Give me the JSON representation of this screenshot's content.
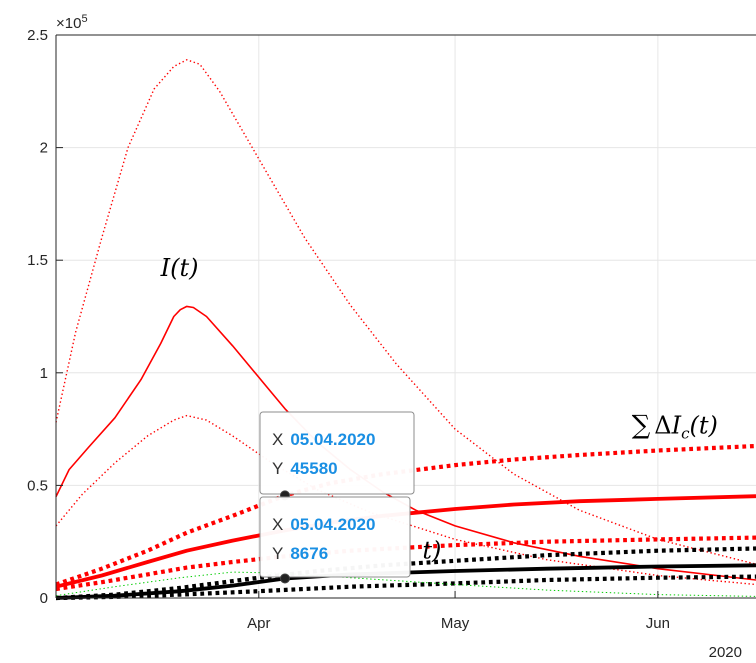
{
  "chart_data": {
    "type": "line",
    "title": "",
    "xlabel": "",
    "ylabel": "",
    "x_year_label": "2020",
    "y_exponent": "×10",
    "y_exponent_power": "5",
    "ylim": [
      0,
      250000
    ],
    "xlim": [
      "2020-03-01",
      "2020-06-16"
    ],
    "x_ticks": [
      {
        "date": "2020-04-01",
        "label": "Apr"
      },
      {
        "date": "2020-05-01",
        "label": "May"
      },
      {
        "date": "2020-06-01",
        "label": "Jun"
      }
    ],
    "y_ticks": [
      {
        "value": 0,
        "label": "0"
      },
      {
        "value": 50000,
        "label": "0.5"
      },
      {
        "value": 100000,
        "label": "1"
      },
      {
        "value": 150000,
        "label": "1.5"
      },
      {
        "value": 200000,
        "label": "2"
      },
      {
        "value": 250000,
        "label": "2.5"
      }
    ],
    "grid": true,
    "series": [
      {
        "color": "#ff0000",
        "style": "solid",
        "width": 1.6,
        "points": [
          [
            "2020-03-01",
            45000
          ],
          [
            "2020-03-03",
            57000
          ],
          [
            "2020-03-06",
            67000
          ],
          [
            "2020-03-10",
            80000
          ],
          [
            "2020-03-14",
            97000
          ],
          [
            "2020-03-17",
            113000
          ],
          [
            "2020-03-19",
            125000
          ],
          [
            "2020-03-20",
            128000
          ],
          [
            "2020-03-21",
            129500
          ],
          [
            "2020-03-22",
            129000
          ],
          [
            "2020-03-24",
            125000
          ],
          [
            "2020-03-28",
            112000
          ],
          [
            "2020-04-01",
            98000
          ],
          [
            "2020-04-05",
            84000
          ],
          [
            "2020-04-10",
            69000
          ],
          [
            "2020-04-15",
            57000
          ],
          [
            "2020-04-20",
            47000
          ],
          [
            "2020-04-25",
            39000
          ],
          [
            "2020-05-01",
            32000
          ],
          [
            "2020-05-10",
            24500
          ],
          [
            "2020-05-20",
            18500
          ],
          [
            "2020-06-01",
            13000
          ],
          [
            "2020-06-16",
            8000
          ]
        ]
      },
      {
        "color": "#ff0000",
        "style": "dotted",
        "width": 1.4,
        "points": [
          [
            "2020-03-01",
            78000
          ],
          [
            "2020-03-04",
            118000
          ],
          [
            "2020-03-08",
            160000
          ],
          [
            "2020-03-12",
            200000
          ],
          [
            "2020-03-16",
            226000
          ],
          [
            "2020-03-19",
            236000
          ],
          [
            "2020-03-21",
            239000
          ],
          [
            "2020-03-23",
            237000
          ],
          [
            "2020-03-26",
            225000
          ],
          [
            "2020-04-01",
            195000
          ],
          [
            "2020-04-08",
            160000
          ],
          [
            "2020-04-15",
            130000
          ],
          [
            "2020-04-22",
            104000
          ],
          [
            "2020-05-01",
            75000
          ],
          [
            "2020-05-10",
            55000
          ],
          [
            "2020-05-20",
            39000
          ],
          [
            "2020-06-01",
            26000
          ],
          [
            "2020-06-16",
            15000
          ]
        ]
      },
      {
        "color": "#ff0000",
        "style": "dotted",
        "width": 1.4,
        "points": [
          [
            "2020-03-01",
            32000
          ],
          [
            "2020-03-05",
            46000
          ],
          [
            "2020-03-10",
            60000
          ],
          [
            "2020-03-15",
            72000
          ],
          [
            "2020-03-19",
            79000
          ],
          [
            "2020-03-21",
            81000
          ],
          [
            "2020-03-24",
            79000
          ],
          [
            "2020-03-28",
            72000
          ],
          [
            "2020-04-03",
            60000
          ],
          [
            "2020-04-10",
            48000
          ],
          [
            "2020-04-18",
            38000
          ],
          [
            "2020-05-01",
            26000
          ],
          [
            "2020-05-15",
            17000
          ],
          [
            "2020-06-01",
            10000
          ],
          [
            "2020-06-16",
            6000
          ]
        ]
      },
      {
        "color": "#ff0000",
        "style": "solid",
        "width": 3.8,
        "points": [
          [
            "2020-03-01",
            5000
          ],
          [
            "2020-03-08",
            10000
          ],
          [
            "2020-03-15",
            16000
          ],
          [
            "2020-03-21",
            21000
          ],
          [
            "2020-03-28",
            25500
          ],
          [
            "2020-04-05",
            30000
          ],
          [
            "2020-04-12",
            33500
          ],
          [
            "2020-04-20",
            36500
          ],
          [
            "2020-05-01",
            39500
          ],
          [
            "2020-05-10",
            41500
          ],
          [
            "2020-05-20",
            43000
          ],
          [
            "2020-06-01",
            44000
          ],
          [
            "2020-06-16",
            45200
          ]
        ]
      },
      {
        "color": "#ff0000",
        "style": "dotted",
        "width": 4.2,
        "points": [
          [
            "2020-03-01",
            6000
          ],
          [
            "2020-03-08",
            13000
          ],
          [
            "2020-03-15",
            21000
          ],
          [
            "2020-03-21",
            29000
          ],
          [
            "2020-03-28",
            36500
          ],
          [
            "2020-04-05",
            45580
          ],
          [
            "2020-04-12",
            51000
          ],
          [
            "2020-04-20",
            55000
          ],
          [
            "2020-05-01",
            59000
          ],
          [
            "2020-05-10",
            61500
          ],
          [
            "2020-05-20",
            63500
          ],
          [
            "2020-06-01",
            65500
          ],
          [
            "2020-06-16",
            67500
          ]
        ]
      },
      {
        "color": "#ff0000",
        "style": "dotted",
        "width": 4.2,
        "points": [
          [
            "2020-03-01",
            4000
          ],
          [
            "2020-03-08",
            7000
          ],
          [
            "2020-03-15",
            10500
          ],
          [
            "2020-03-21",
            13500
          ],
          [
            "2020-03-28",
            16000
          ],
          [
            "2020-04-05",
            18500
          ],
          [
            "2020-04-15",
            21000
          ],
          [
            "2020-05-01",
            23500
          ],
          [
            "2020-05-15",
            25000
          ],
          [
            "2020-06-01",
            26000
          ],
          [
            "2020-06-16",
            26800
          ]
        ]
      },
      {
        "color": "#000000",
        "style": "solid",
        "width": 3.8,
        "points": [
          [
            "2020-03-01",
            0
          ],
          [
            "2020-03-10",
            1000
          ],
          [
            "2020-03-20",
            3000
          ],
          [
            "2020-03-28",
            5500
          ],
          [
            "2020-04-05",
            8676
          ],
          [
            "2020-04-15",
            10500
          ],
          [
            "2020-05-01",
            12000
          ],
          [
            "2020-05-15",
            13000
          ],
          [
            "2020-06-01",
            14000
          ],
          [
            "2020-06-16",
            14500
          ]
        ]
      },
      {
        "color": "#000000",
        "style": "dotted",
        "width": 4.2,
        "points": [
          [
            "2020-03-01",
            0
          ],
          [
            "2020-03-10",
            1500
          ],
          [
            "2020-03-20",
            4500
          ],
          [
            "2020-04-01",
            9000
          ],
          [
            "2020-04-10",
            12000
          ],
          [
            "2020-04-20",
            14500
          ],
          [
            "2020-05-01",
            16500
          ],
          [
            "2020-05-15",
            19000
          ],
          [
            "2020-06-01",
            21000
          ],
          [
            "2020-06-16",
            22000
          ]
        ]
      },
      {
        "color": "#000000",
        "style": "dotted",
        "width": 4.2,
        "points": [
          [
            "2020-03-01",
            0
          ],
          [
            "2020-03-10",
            500
          ],
          [
            "2020-03-20",
            1500
          ],
          [
            "2020-04-01",
            3000
          ],
          [
            "2020-04-15",
            5000
          ],
          [
            "2020-05-01",
            6500
          ],
          [
            "2020-05-15",
            8000
          ],
          [
            "2020-06-01",
            9000
          ],
          [
            "2020-06-16",
            9500
          ]
        ]
      },
      {
        "color": "#00cc00",
        "style": "dotted",
        "width": 1.0,
        "points": [
          [
            "2020-03-01",
            1000
          ],
          [
            "2020-03-10",
            5000
          ],
          [
            "2020-03-20",
            9000
          ],
          [
            "2020-03-28",
            11500
          ],
          [
            "2020-04-05",
            11000
          ],
          [
            "2020-04-15",
            9000
          ],
          [
            "2020-05-01",
            6000
          ],
          [
            "2020-05-15",
            3500
          ],
          [
            "2020-06-01",
            1500
          ],
          [
            "2020-06-16",
            700
          ]
        ]
      }
    ],
    "annotations": [
      {
        "text": "I(t)",
        "date": "2020-03-17",
        "value": 143000
      },
      {
        "text": "∑ΔI",
        "subscript": "c",
        "suffix": "(t)",
        "date": "2020-05-28",
        "value": 73000
      },
      {
        "text": "t)",
        "date": "2020-04-26",
        "value": 17500
      }
    ],
    "datatips": [
      {
        "x_key": "X",
        "x_value": "05.04.2020",
        "y_key": "Y",
        "y_value": "45580",
        "date": "2020-04-05",
        "value": 45580
      },
      {
        "x_key": "X",
        "x_value": "05.04.2020",
        "y_key": "Y",
        "y_value": "8676",
        "date": "2020-04-05",
        "value": 8676
      }
    ]
  }
}
